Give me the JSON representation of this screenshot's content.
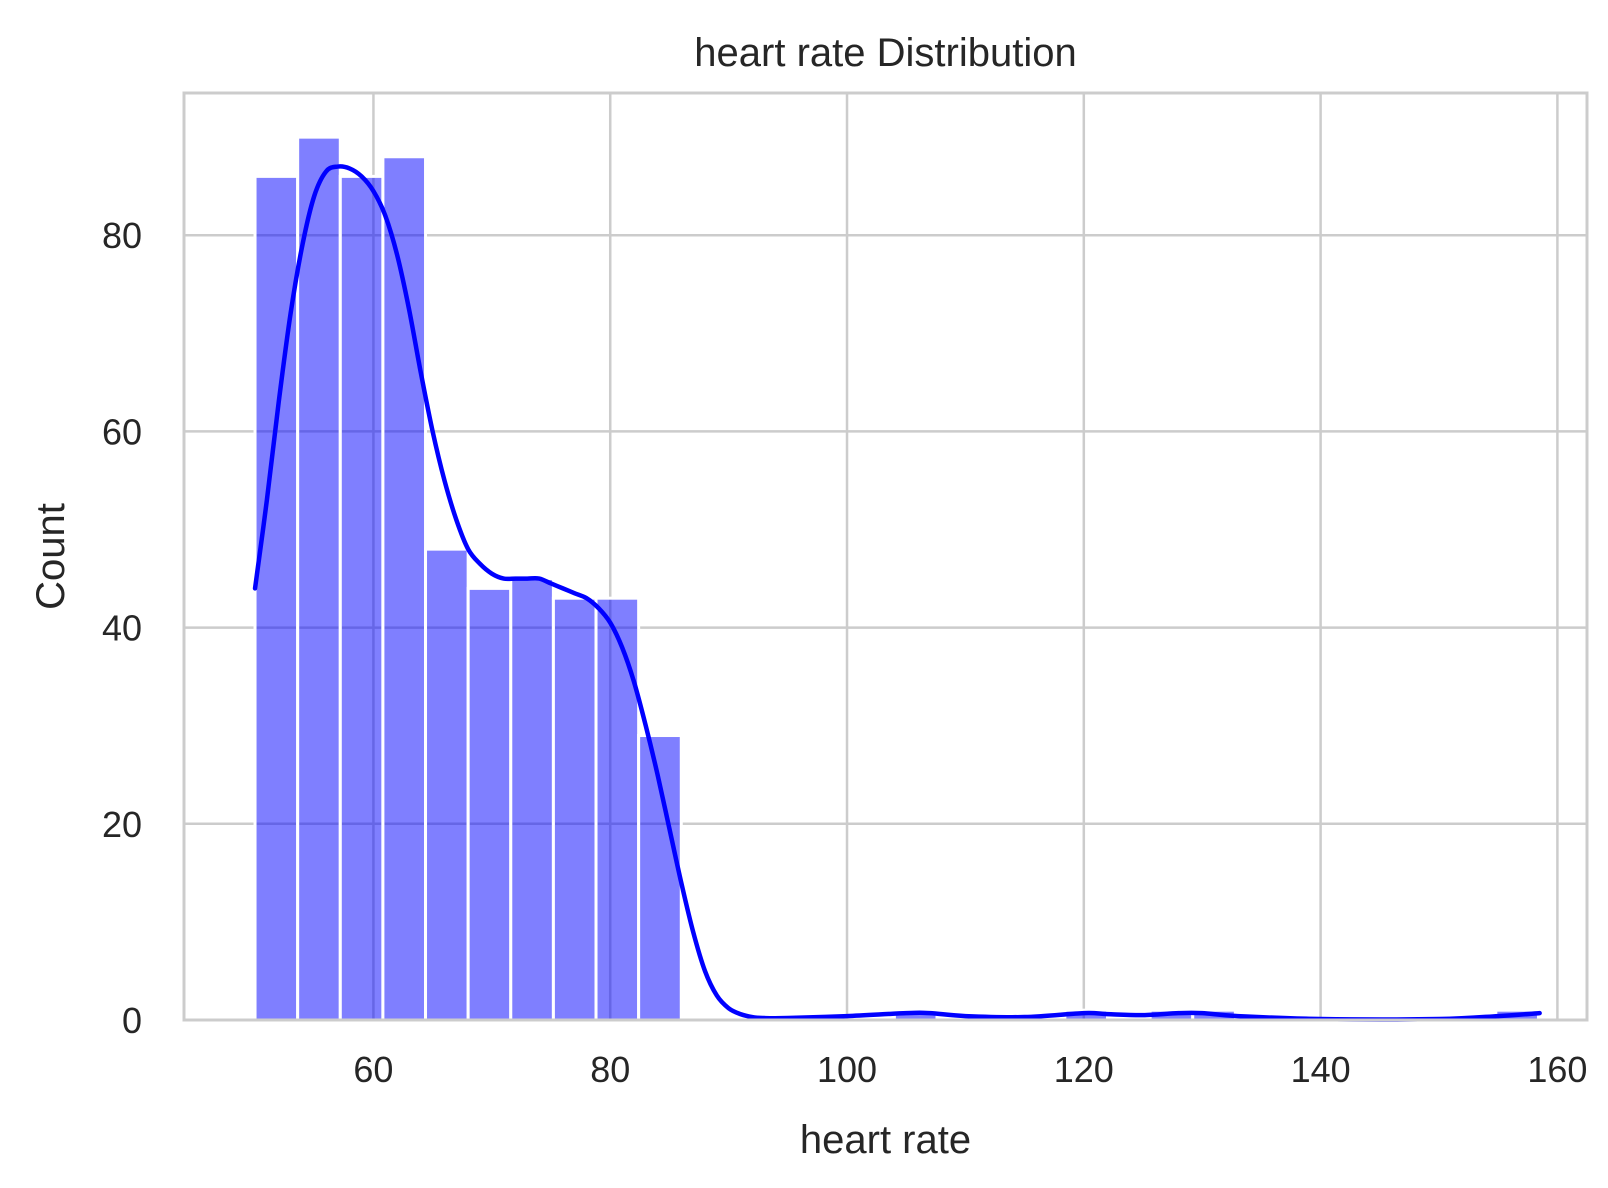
{
  "chart_data": {
    "type": "bar",
    "title": "heart rate  Distribution",
    "xlabel": "heart rate",
    "ylabel": "Count",
    "xlim": [
      44,
      162.5
    ],
    "ylim": [
      0,
      94.5
    ],
    "x_ticks": [
      60,
      80,
      100,
      120,
      140,
      160
    ],
    "y_ticks": [
      0,
      20,
      40,
      60,
      80
    ],
    "grid": true,
    "bar_color": "#0000ff",
    "bar_opacity": 0.5,
    "kde_color": "#0000ff",
    "bins": [
      {
        "start": 50.0,
        "end": 53.6,
        "count": 86
      },
      {
        "start": 53.6,
        "end": 57.2,
        "count": 90
      },
      {
        "start": 57.2,
        "end": 60.8,
        "count": 86
      },
      {
        "start": 60.8,
        "end": 64.4,
        "count": 88
      },
      {
        "start": 64.4,
        "end": 68.0,
        "count": 48
      },
      {
        "start": 68.0,
        "end": 71.6,
        "count": 44
      },
      {
        "start": 71.6,
        "end": 75.2,
        "count": 45
      },
      {
        "start": 75.2,
        "end": 78.8,
        "count": 43
      },
      {
        "start": 78.8,
        "end": 82.4,
        "count": 43
      },
      {
        "start": 82.4,
        "end": 86.0,
        "count": 29
      },
      {
        "start": 104.0,
        "end": 107.6,
        "count": 1
      },
      {
        "start": 118.4,
        "end": 122.0,
        "count": 1
      },
      {
        "start": 125.6,
        "end": 129.2,
        "count": 1
      },
      {
        "start": 129.2,
        "end": 132.8,
        "count": 1
      },
      {
        "start": 154.8,
        "end": 158.4,
        "count": 1
      }
    ],
    "kde": {
      "x": [
        50,
        51,
        52,
        53,
        54,
        55,
        56,
        57,
        58,
        59,
        60,
        61,
        62,
        63,
        64,
        65,
        66,
        67,
        68,
        69,
        70,
        71,
        72,
        73,
        74,
        75,
        76,
        77,
        78,
        79,
        80,
        81,
        82,
        83,
        84,
        85,
        86,
        87,
        88,
        89,
        90,
        91,
        92,
        93,
        95,
        100,
        105,
        107,
        110,
        115,
        120,
        122,
        125,
        128,
        130,
        133,
        140,
        150,
        155,
        158.5
      ],
      "y": [
        44,
        53,
        63,
        72,
        79,
        84,
        86.5,
        87,
        86.8,
        86,
        84.5,
        82,
        78,
        72.5,
        66,
        60,
        55,
        51,
        48,
        46.5,
        45.5,
        45,
        45,
        45,
        45,
        44.5,
        44,
        43.5,
        43,
        42,
        40.5,
        38,
        34.5,
        30,
        25,
        19.5,
        14,
        9,
        5,
        2.5,
        1.2,
        0.6,
        0.3,
        0.2,
        0.2,
        0.4,
        0.7,
        0.7,
        0.4,
        0.3,
        0.7,
        0.6,
        0.5,
        0.7,
        0.7,
        0.4,
        0.1,
        0.1,
        0.4,
        0.7
      ]
    }
  }
}
